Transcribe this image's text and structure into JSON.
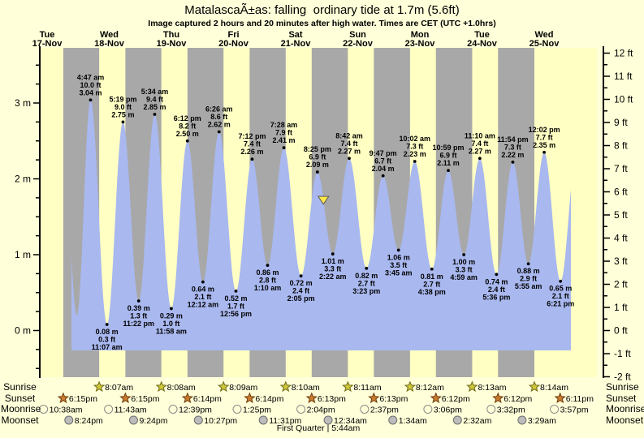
{
  "title": "MatalascaÃ±as: falling  ordinary tide at 1.7m (5.6ft)",
  "subtitle": "Image captured 2 hours and 20 minutes after high water. Times are CET (UTC +1.0hrs)",
  "days": [
    {
      "name": "Tue",
      "date": "17-Nov"
    },
    {
      "name": "Wed",
      "date": "18-Nov"
    },
    {
      "name": "Thu",
      "date": "19-Nov"
    },
    {
      "name": "Fri",
      "date": "20-Nov"
    },
    {
      "name": "Sat",
      "date": "21-Nov"
    },
    {
      "name": "Sun",
      "date": "22-Nov"
    },
    {
      "name": "Mon",
      "date": "23-Nov"
    },
    {
      "name": "Tue",
      "date": "24-Nov"
    },
    {
      "name": "Wed",
      "date": "25-Nov"
    }
  ],
  "chart_data": {
    "type": "area",
    "title": "MatalascaÃ±as: falling  ordinary tide at 1.7m (5.6ft)",
    "y_axis_left": {
      "unit": "m",
      "tick_labels": [
        "0 m",
        "1 m",
        "2 m",
        "3 m"
      ],
      "minor_step_m": 0.25
    },
    "y_axis_right": {
      "unit": "ft",
      "min": -2,
      "max": 12,
      "step": 1,
      "minor_step": 0.5
    },
    "extremes": [
      {
        "day": 1,
        "type": "high",
        "time": "4:47 am",
        "ft": "10.0",
        "m": "3.04"
      },
      {
        "day": 1,
        "type": "low",
        "time": "11:07 am",
        "ft": "0.3",
        "m": "0.08"
      },
      {
        "day": 1,
        "type": "high",
        "time": "5:19 pm",
        "ft": "9.0",
        "m": "2.75"
      },
      {
        "day": 1,
        "type": "low",
        "time": "11:22 pm",
        "ft": "1.3",
        "m": "0.39"
      },
      {
        "day": 2,
        "type": "high",
        "time": "5:34 am",
        "ft": "9.4",
        "m": "2.85"
      },
      {
        "day": 2,
        "type": "low",
        "time": "11:58 am",
        "ft": "1.0",
        "m": "0.29"
      },
      {
        "day": 2,
        "type": "high",
        "time": "6:12 pm",
        "ft": "8.2",
        "m": "2.50"
      },
      {
        "day": 3,
        "type": "low",
        "time": "12:12 am",
        "ft": "2.1",
        "m": "0.64"
      },
      {
        "day": 3,
        "type": "high",
        "time": "6:26 am",
        "ft": "8.6",
        "m": "2.62"
      },
      {
        "day": 3,
        "type": "low",
        "time": "12:56 pm",
        "ft": "1.7",
        "m": "0.52"
      },
      {
        "day": 3,
        "type": "high",
        "time": "7:12 pm",
        "ft": "7.4",
        "m": "2.26"
      },
      {
        "day": 4,
        "type": "low",
        "time": "1:10 am",
        "ft": "2.8",
        "m": "0.86"
      },
      {
        "day": 4,
        "type": "high",
        "time": "7:28 am",
        "ft": "7.9",
        "m": "2.41"
      },
      {
        "day": 4,
        "type": "low",
        "time": "2:05 pm",
        "ft": "2.4",
        "m": "0.72"
      },
      {
        "day": 4,
        "type": "high",
        "time": "8:25 pm",
        "ft": "6.9",
        "m": "2.09"
      },
      {
        "day": 5,
        "type": "low",
        "time": "2:22 am",
        "ft": "3.3",
        "m": "1.01"
      },
      {
        "day": 5,
        "type": "high",
        "time": "8:42 am",
        "ft": "7.4",
        "m": "2.27"
      },
      {
        "day": 5,
        "type": "low",
        "time": "3:23 pm",
        "ft": "2.7",
        "m": "0.82"
      },
      {
        "day": 5,
        "type": "high",
        "time": "9:47 pm",
        "ft": "6.7",
        "m": "2.04"
      },
      {
        "day": 6,
        "type": "low",
        "time": "3:45 am",
        "ft": "3.5",
        "m": "1.06"
      },
      {
        "day": 6,
        "type": "high",
        "time": "10:02 am",
        "ft": "7.3",
        "m": "2.23"
      },
      {
        "day": 6,
        "type": "low",
        "time": "4:38 pm",
        "ft": "2.7",
        "m": "0.81"
      },
      {
        "day": 6,
        "type": "high",
        "time": "10:59 pm",
        "ft": "6.9",
        "m": "2.11"
      },
      {
        "day": 7,
        "type": "low",
        "time": "4:59 am",
        "ft": "3.3",
        "m": "1.00"
      },
      {
        "day": 7,
        "type": "high",
        "time": "11:10 am",
        "ft": "7.4",
        "m": "2.27"
      },
      {
        "day": 7,
        "type": "low",
        "time": "5:36 pm",
        "ft": "2.4",
        "m": "0.74"
      },
      {
        "day": 7,
        "type": "high",
        "time": "11:54 pm",
        "ft": "7.3",
        "m": "2.22"
      },
      {
        "day": 8,
        "type": "low",
        "time": "5:55 am",
        "ft": "2.9",
        "m": "0.88"
      },
      {
        "day": 8,
        "type": "high",
        "time": "12:02 pm",
        "ft": "7.7",
        "m": "2.35"
      },
      {
        "day": 8,
        "type": "low",
        "time": "6:21 pm",
        "ft": "2.1",
        "m": "0.65"
      }
    ],
    "offchart_extremes_start": [
      {
        "day": 0,
        "hour": 17.6,
        "m": 3.0
      },
      {
        "day": 0,
        "hour": 23.5,
        "m": 0.2
      }
    ],
    "offchart_extremes_end": [
      {
        "day": 8,
        "hour": 24.45,
        "m": 2.3
      }
    ],
    "now_marker": {
      "level_m": "1.7",
      "day": 4,
      "hour": 22.75,
      "plot_m": 1.72
    }
  },
  "almanac": {
    "rows": [
      {
        "key": "sunrise",
        "label": "Sunrise",
        "icon": "sunrise-star",
        "events": [
          {
            "day": 1,
            "time": "8:07am"
          },
          {
            "day": 2,
            "time": "8:08am"
          },
          {
            "day": 3,
            "time": "8:09am"
          },
          {
            "day": 4,
            "time": "8:10am"
          },
          {
            "day": 5,
            "time": "8:11am"
          },
          {
            "day": 6,
            "time": "8:12am"
          },
          {
            "day": 7,
            "time": "8:13am"
          },
          {
            "day": 8,
            "time": "8:14am"
          }
        ]
      },
      {
        "key": "sunset",
        "label": "Sunset",
        "icon": "sunset-star",
        "events": [
          {
            "day": 0,
            "time": "6:15pm"
          },
          {
            "day": 1,
            "time": "6:15pm"
          },
          {
            "day": 2,
            "time": "6:14pm"
          },
          {
            "day": 3,
            "time": "6:14pm"
          },
          {
            "day": 4,
            "time": "6:13pm"
          },
          {
            "day": 5,
            "time": "6:13pm"
          },
          {
            "day": 6,
            "time": "6:12pm"
          },
          {
            "day": 7,
            "time": "6:12pm"
          },
          {
            "day": 8,
            "time": "6:11pm"
          }
        ]
      },
      {
        "key": "moonrise",
        "label": "Moonrise",
        "icon": "moonrise-moon",
        "events": [
          {
            "day": 0,
            "time": "10:38am"
          },
          {
            "day": 1,
            "time": "11:43am"
          },
          {
            "day": 2,
            "time": "12:39pm"
          },
          {
            "day": 3,
            "time": "1:25pm"
          },
          {
            "day": 4,
            "time": "2:04pm"
          },
          {
            "day": 5,
            "time": "2:37pm"
          },
          {
            "day": 6,
            "time": "3:06pm"
          },
          {
            "day": 7,
            "time": "3:32pm"
          },
          {
            "day": 8,
            "time": "3:57pm"
          }
        ]
      },
      {
        "key": "moonset",
        "label": "Moonset",
        "icon": "moonset-moon",
        "events": [
          {
            "day": 0,
            "time": "8:24pm"
          },
          {
            "day": 1,
            "time": "9:24pm"
          },
          {
            "day": 2,
            "time": "10:27pm"
          },
          {
            "day": 3,
            "time": "11:31pm"
          },
          {
            "day": 5,
            "time": "12:34am"
          },
          {
            "day": 6,
            "time": "1:34am"
          },
          {
            "day": 7,
            "time": "2:32am"
          },
          {
            "day": 8,
            "time": "3:29am"
          }
        ]
      }
    ],
    "footer": "First Quarter | 5:44am"
  },
  "colors": {
    "bg": "#ffffd9",
    "day_band": "#ffffc4",
    "night_band": "#a8a8a8",
    "water": "#a9b8ef",
    "date_red": "#ff3222",
    "sunrise_star": "#cfc83a",
    "sunrise_star_stroke": "#6f6a1a",
    "sunset_star": "#c97c2e",
    "sunset_star_stroke": "#6e3c0e",
    "moonrise_moon": "#ffffd8",
    "moonrise_moon_stroke": "#8a8a8a",
    "moonset_moon": "#bcbcbc",
    "moonset_moon_stroke": "#6e6e6e",
    "marker": "#ffe84a",
    "marker_stroke": "#5a5a5a"
  }
}
